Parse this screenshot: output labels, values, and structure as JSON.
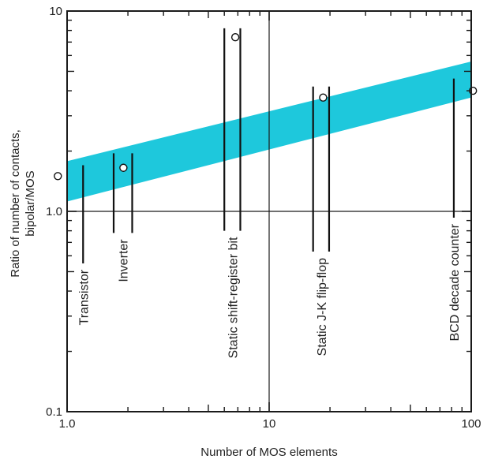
{
  "chart_data": {
    "type": "scatter",
    "x_scale": "log",
    "y_scale": "log",
    "xlim": [
      1.0,
      100
    ],
    "ylim": [
      0.1,
      10
    ],
    "xlabel": "Number of MOS elements",
    "ylabel": "Ratio of number of contacts, bipolar/MOS",
    "x_ticks": [
      {
        "value": 1.0,
        "label": "1.0"
      },
      {
        "value": 10,
        "label": "10"
      },
      {
        "value": 100,
        "label": "100"
      }
    ],
    "y_ticks": [
      {
        "value": 0.1,
        "label": "0.1"
      },
      {
        "value": 1.0,
        "label": "1.0"
      },
      {
        "value": 10,
        "label": "10"
      }
    ],
    "grid": {
      "x": [
        10
      ],
      "y": [
        1.0
      ]
    },
    "band": {
      "color": "#1ec8dc",
      "upper": [
        {
          "x": 1.0,
          "y": 1.78
        },
        {
          "x": 100,
          "y": 5.6
        }
      ],
      "lower": [
        {
          "x": 1.0,
          "y": 1.12
        },
        {
          "x": 100,
          "y": 3.7
        }
      ]
    },
    "points": [
      {
        "x": 0.9,
        "y": 1.5
      },
      {
        "x": 1.9,
        "y": 1.65
      },
      {
        "x": 6.8,
        "y": 7.4
      },
      {
        "x": 18.5,
        "y": 3.7
      },
      {
        "x": 102,
        "y": 4.0
      }
    ],
    "elements": [
      {
        "label": "Transistor",
        "x_bars": [
          1.2
        ],
        "y_top": 1.7,
        "y_bottom": 0.55
      },
      {
        "label": "Inverter",
        "x_bars": [
          1.7,
          2.1
        ],
        "y_top": 1.95,
        "y_bottom": 0.78
      },
      {
        "label": "Static shift-register bit",
        "x_bars": [
          6,
          7.2
        ],
        "y_top": 8.2,
        "y_bottom": 0.8
      },
      {
        "label": "Static J-K flip-flop",
        "x_bars": [
          16.5,
          19.8
        ],
        "y_top": 4.2,
        "y_bottom": 0.63
      },
      {
        "label": "BCD decade counter",
        "x_bars": [
          82
        ],
        "y_top": 4.6,
        "y_bottom": 0.93
      }
    ]
  }
}
